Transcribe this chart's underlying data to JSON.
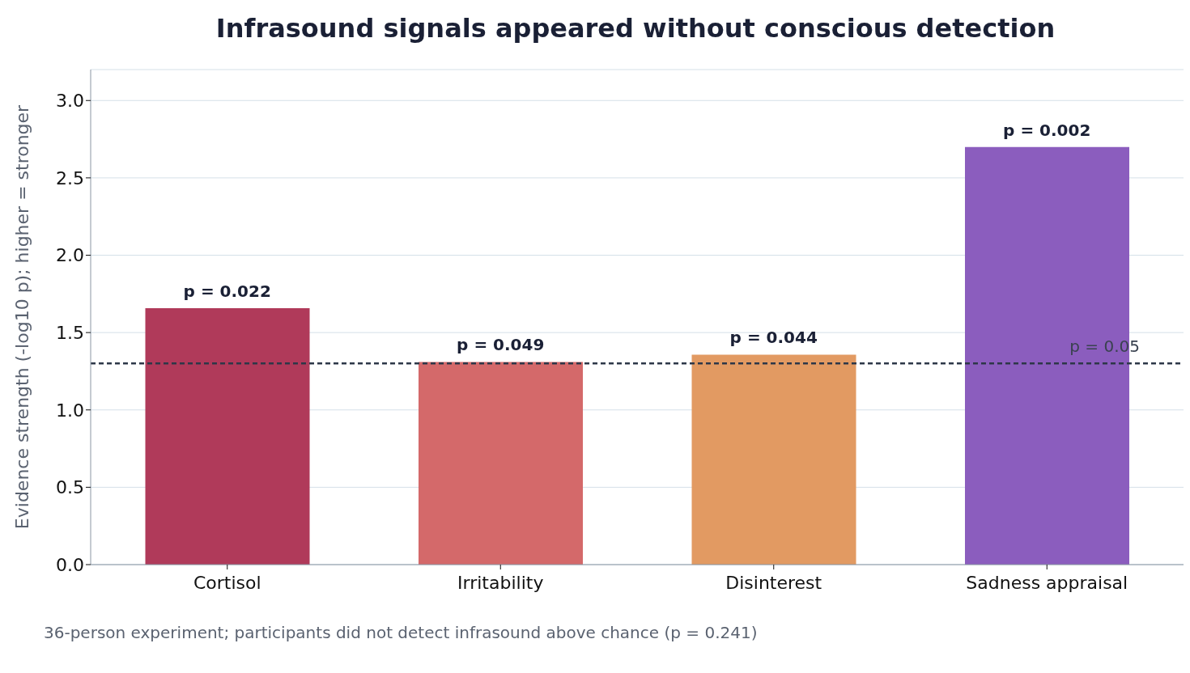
{
  "chart_data": {
    "type": "bar",
    "title": "Infrasound signals appeared without conscious detection",
    "ylabel": "Evidence strength (-log10 p); higher = stronger",
    "categories": [
      "Cortisol",
      "Irritability",
      "Disinterest",
      "Sadness appraisal"
    ],
    "values": [
      1.658,
      1.31,
      1.357,
      2.699
    ],
    "colors": [
      "#b03a5a",
      "#d4696a",
      "#e29a62",
      "#8b5dbe"
    ],
    "ylim": [
      0,
      3.2
    ],
    "yticks": [
      {
        "value": 0,
        "label": "0.0"
      },
      {
        "value": 0.5,
        "label": "0.5"
      },
      {
        "value": 1,
        "label": "1.0"
      },
      {
        "value": 1.5,
        "label": "1.5"
      },
      {
        "value": 2,
        "label": "2.0"
      },
      {
        "value": 2.5,
        "label": "2.5"
      },
      {
        "value": 3,
        "label": "3.0"
      }
    ],
    "grid": "y",
    "ref_lines": [
      {
        "axis": "y",
        "value": 1.301,
        "color": "#2d3748",
        "line_style": "dashed"
      }
    ],
    "annotations": [
      {
        "text": "p = 0.022",
        "x": "Cortisol",
        "y": 1.658
      },
      {
        "text": "p = 0.049",
        "x": "Irritability",
        "y": 1.31
      },
      {
        "text": "p = 0.044",
        "x": "Disinterest",
        "y": 1.357
      },
      {
        "text": "p = 0.002",
        "x": "Sadness appraisal",
        "y": 2.699
      },
      {
        "text": "p = 0.05",
        "y": 1.301
      },
      "36-person experiment; participants did not detect infrasound above chance (p = 0.241)"
    ]
  }
}
